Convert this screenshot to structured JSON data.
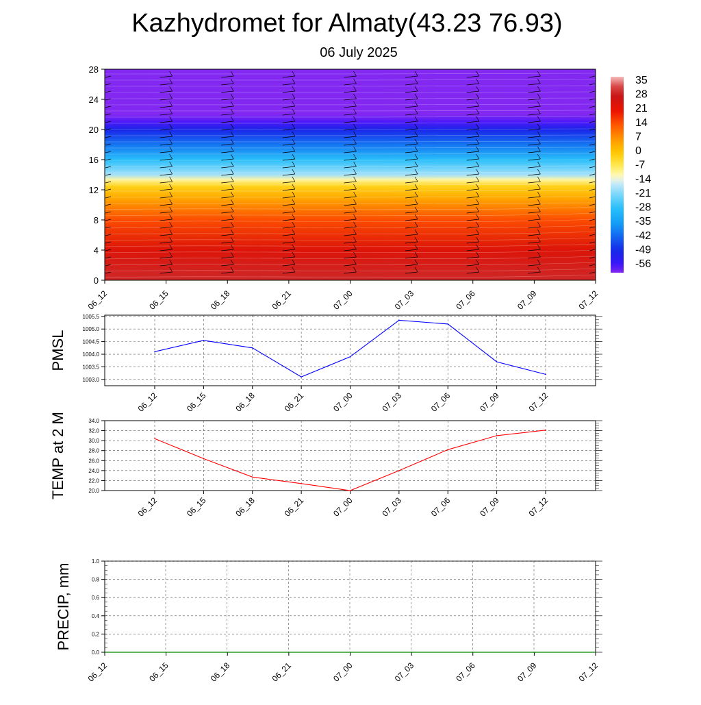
{
  "title": "Kazhydromet for Almaty(43.23 76.93)",
  "subtitle": "06 July 2025",
  "time_labels": [
    "06_12",
    "06_15",
    "06_18",
    "06_21",
    "07_00",
    "07_03",
    "07_06",
    "07_09",
    "07_12"
  ],
  "chart_data": [
    {
      "type": "heatmap",
      "name": "upper-air-temperature",
      "x_labels": [
        "06_12",
        "06_15",
        "06_18",
        "06_21",
        "07_00",
        "07_03",
        "07_06",
        "07_09",
        "07_12"
      ],
      "yticks": [
        0,
        4,
        8,
        12,
        16,
        20,
        24,
        28
      ],
      "ylim": [
        0,
        28
      ],
      "colorbar": {
        "labels": [
          35,
          28,
          21,
          14,
          7,
          0,
          -7,
          -14,
          -21,
          -28,
          -35,
          -42,
          -49,
          -56
        ],
        "range": [
          -60,
          38
        ]
      },
      "temperature_profile": [
        {
          "height": 0,
          "value": 30
        },
        {
          "height": 4,
          "value": 24
        },
        {
          "height": 8,
          "value": 15
        },
        {
          "height": 11,
          "value": 4
        },
        {
          "height": 12.5,
          "value": -2
        },
        {
          "height": 13.3,
          "value": -10
        },
        {
          "height": 14,
          "value": -18
        },
        {
          "height": 16,
          "value": -28
        },
        {
          "height": 18,
          "value": -40
        },
        {
          "height": 20,
          "value": -50
        },
        {
          "height": 21,
          "value": -57
        },
        {
          "height": 22,
          "value": -60
        },
        {
          "height": 28,
          "value": -60
        }
      ],
      "wind_barb_heights": [
        1,
        2,
        3,
        4,
        5,
        6,
        7,
        8,
        9,
        10,
        11,
        12,
        13,
        14,
        15,
        16,
        17,
        18,
        19,
        20,
        21,
        22,
        23,
        24,
        25,
        26,
        27
      ],
      "grid": false
    },
    {
      "type": "line",
      "name": "pmsl",
      "ylabel": "PMSL",
      "categories": [
        "06_12",
        "06_15",
        "06_18",
        "06_21",
        "07_00",
        "07_03",
        "07_06",
        "07_09",
        "07_12"
      ],
      "values": [
        1004.1,
        1004.55,
        1004.25,
        1003.1,
        1003.9,
        1005.35,
        1005.2,
        1003.7,
        1003.2
      ],
      "yticks": [
        "1003.0",
        "1003.5",
        "1004.0",
        "1004.5",
        "1005.0",
        "1005.5"
      ],
      "ylim": [
        1002.75,
        1005.55
      ],
      "color": "#0000ff",
      "grid": true
    },
    {
      "type": "line",
      "name": "temp-2m",
      "ylabel": "TEMP at 2 M",
      "categories": [
        "06_12",
        "06_15",
        "06_18",
        "06_21",
        "07_00",
        "07_03",
        "07_06",
        "07_09",
        "07_12"
      ],
      "values": [
        30.4,
        26.4,
        22.7,
        21.4,
        20.0,
        24.0,
        28.2,
        31.0,
        32.1
      ],
      "yticks": [
        "20.0",
        "22.0",
        "24.0",
        "26.0",
        "28.0",
        "30.0",
        "32.0",
        "34.0"
      ],
      "ylim": [
        20,
        34
      ],
      "color": "#ff0000",
      "grid": true
    },
    {
      "type": "line",
      "name": "precip",
      "ylabel": "PRECIP, mm",
      "categories": [
        "06_12",
        "06_15",
        "06_18",
        "06_21",
        "07_00",
        "07_03",
        "07_06",
        "07_09",
        "07_12"
      ],
      "values": [
        0,
        0,
        0,
        0,
        0,
        0,
        0,
        0,
        0
      ],
      "yticks": [
        "0.0",
        "0.2",
        "0.4",
        "0.6",
        "0.8",
        "1.0"
      ],
      "ylim": [
        0,
        1
      ],
      "color": "#008000",
      "grid": true
    }
  ]
}
